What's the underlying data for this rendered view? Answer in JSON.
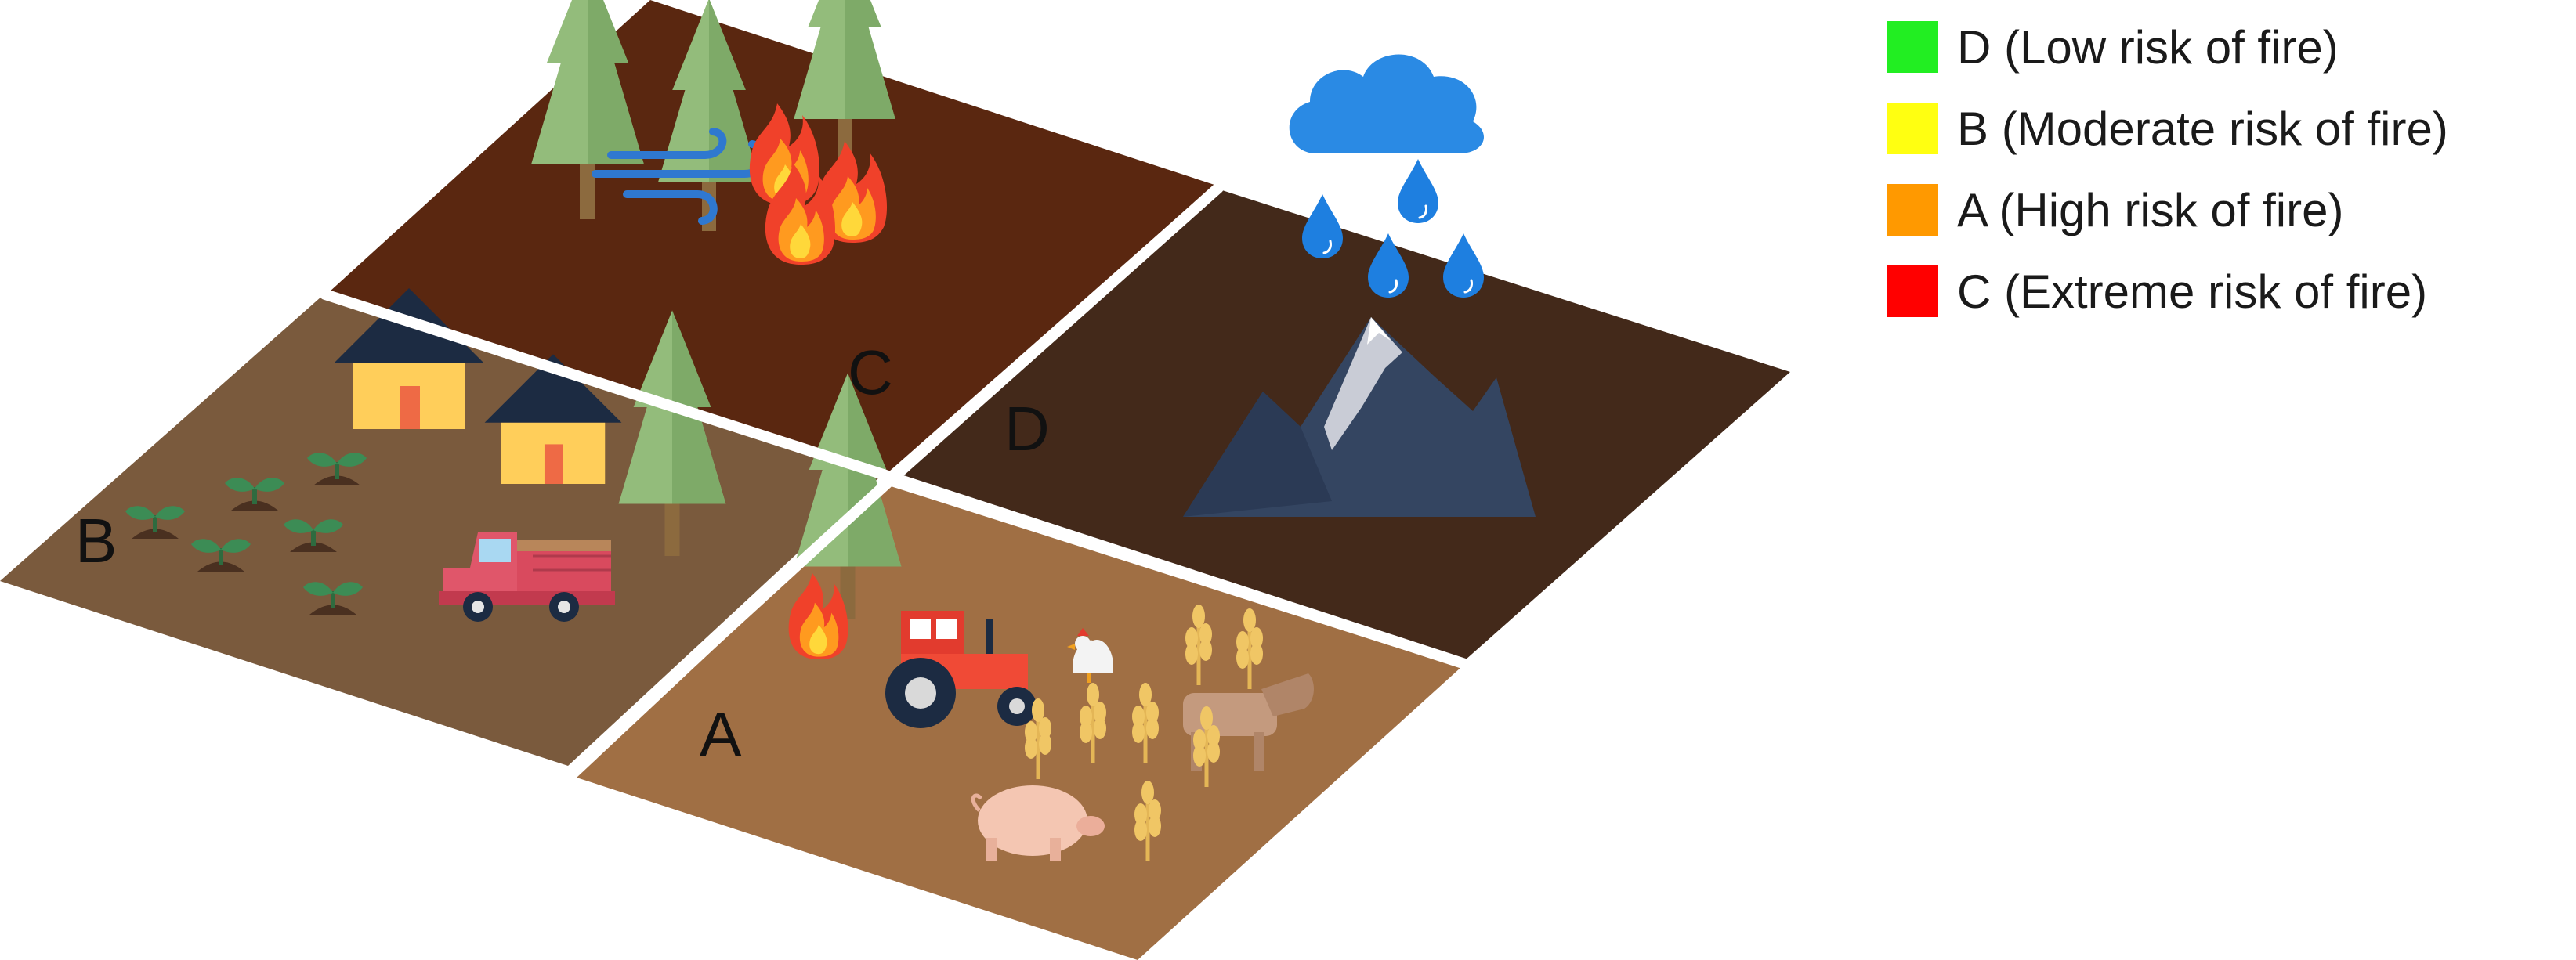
{
  "plots": {
    "A": {
      "label": "A",
      "color": "#A06F44"
    },
    "B": {
      "label": "B",
      "color": "#7A5A3D"
    },
    "C": {
      "label": "C",
      "color": "#5A2710"
    },
    "D": {
      "label": "D",
      "color": "#43291A"
    }
  },
  "legend": [
    {
      "label": "D (Low risk of fire)",
      "color": "#22EE22"
    },
    {
      "label": "B (Moderate risk of fire)",
      "color": "#FFFF11"
    },
    {
      "label": "A (High risk of fire)",
      "color": "#FF9900"
    },
    {
      "label": "C (Extreme risk of fire)",
      "color": "#FF0000"
    }
  ],
  "icons": {
    "plot_C": [
      "tree-icon",
      "tree-icon",
      "tree-icon",
      "wind-icon",
      "fire-icon",
      "fire-icon",
      "fire-icon"
    ],
    "plot_D": [
      "rain-cloud-icon",
      "raindrop-icon",
      "raindrop-icon",
      "raindrop-icon",
      "raindrop-icon",
      "mountain-icon"
    ],
    "plot_B": [
      "house-icon",
      "house-icon",
      "sprout-icon",
      "sprout-icon",
      "sprout-icon",
      "sprout-icon",
      "sprout-icon",
      "sprout-icon",
      "truck-icon",
      "tree-icon"
    ],
    "plot_A": [
      "tree-icon",
      "fire-icon",
      "tractor-icon",
      "chicken-icon",
      "cow-icon",
      "pig-icon",
      "wheat-icon"
    ]
  }
}
